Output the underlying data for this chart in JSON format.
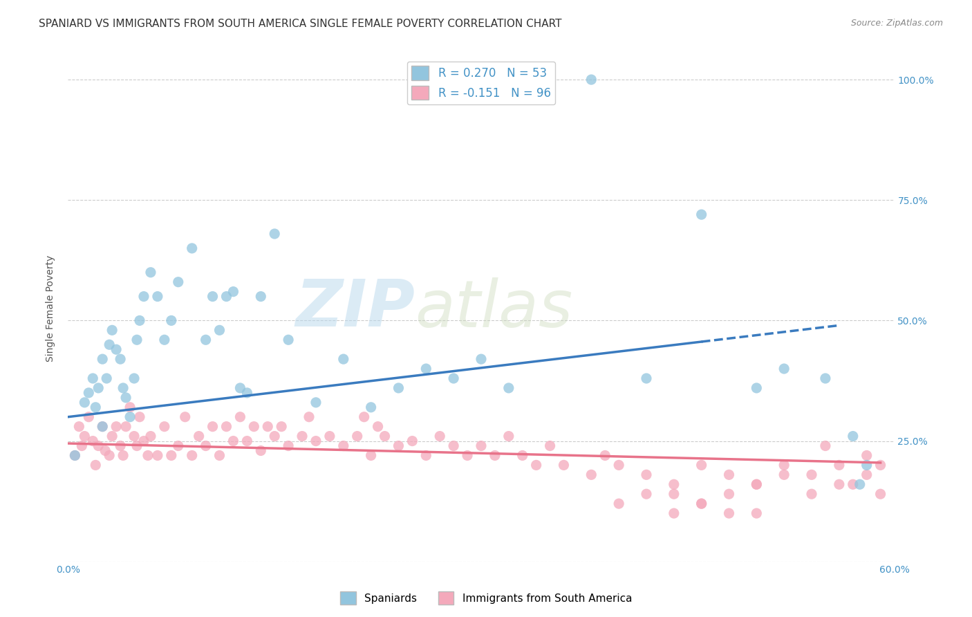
{
  "title": "SPANIARD VS IMMIGRANTS FROM SOUTH AMERICA SINGLE FEMALE POVERTY CORRELATION CHART",
  "source": "Source: ZipAtlas.com",
  "ylabel": "Single Female Poverty",
  "xlim": [
    0.0,
    0.6
  ],
  "ylim": [
    0.0,
    1.05
  ],
  "y_ticks": [
    0.0,
    0.25,
    0.5,
    0.75,
    1.0
  ],
  "y_tick_labels": [
    "",
    "25.0%",
    "50.0%",
    "75.0%",
    "100.0%"
  ],
  "legend_blue_label": "R = 0.270   N = 53",
  "legend_pink_label": "R = -0.151   N = 96",
  "legend_blue_series": "Spaniards",
  "legend_pink_series": "Immigrants from South America",
  "blue_color": "#92c5de",
  "pink_color": "#f4a9bb",
  "trend_blue_color": "#3a7bbf",
  "trend_pink_color": "#e8738a",
  "watermark_zip": "ZIP",
  "watermark_atlas": "atlas",
  "blue_R": 0.27,
  "pink_R": -0.151,
  "blue_trend_x0": 0.0,
  "blue_trend_y0": 0.3,
  "blue_trend_x1": 0.56,
  "blue_trend_y1": 0.49,
  "blue_trend_solid_end": 0.46,
  "pink_trend_x0": 0.0,
  "pink_trend_y0": 0.245,
  "pink_trend_x1": 0.59,
  "pink_trend_y1": 0.205,
  "blue_scatter_x": [
    0.005,
    0.012,
    0.015,
    0.018,
    0.02,
    0.022,
    0.025,
    0.025,
    0.028,
    0.03,
    0.032,
    0.035,
    0.038,
    0.04,
    0.042,
    0.045,
    0.048,
    0.05,
    0.052,
    0.055,
    0.06,
    0.065,
    0.07,
    0.075,
    0.08,
    0.09,
    0.1,
    0.105,
    0.11,
    0.115,
    0.12,
    0.125,
    0.13,
    0.14,
    0.15,
    0.16,
    0.18,
    0.2,
    0.22,
    0.24,
    0.26,
    0.28,
    0.3,
    0.32,
    0.38,
    0.42,
    0.46,
    0.5,
    0.52,
    0.55,
    0.57,
    0.575,
    0.58
  ],
  "blue_scatter_y": [
    0.22,
    0.33,
    0.35,
    0.38,
    0.32,
    0.36,
    0.28,
    0.42,
    0.38,
    0.45,
    0.48,
    0.44,
    0.42,
    0.36,
    0.34,
    0.3,
    0.38,
    0.46,
    0.5,
    0.55,
    0.6,
    0.55,
    0.46,
    0.5,
    0.58,
    0.65,
    0.46,
    0.55,
    0.48,
    0.55,
    0.56,
    0.36,
    0.35,
    0.55,
    0.68,
    0.46,
    0.33,
    0.42,
    0.32,
    0.36,
    0.4,
    0.38,
    0.42,
    0.36,
    1.0,
    0.38,
    0.72,
    0.36,
    0.4,
    0.38,
    0.26,
    0.16,
    0.2
  ],
  "pink_scatter_x": [
    0.005,
    0.008,
    0.01,
    0.012,
    0.015,
    0.018,
    0.02,
    0.022,
    0.025,
    0.027,
    0.03,
    0.032,
    0.035,
    0.038,
    0.04,
    0.042,
    0.045,
    0.048,
    0.05,
    0.052,
    0.055,
    0.058,
    0.06,
    0.065,
    0.07,
    0.075,
    0.08,
    0.085,
    0.09,
    0.095,
    0.1,
    0.105,
    0.11,
    0.115,
    0.12,
    0.125,
    0.13,
    0.135,
    0.14,
    0.145,
    0.15,
    0.155,
    0.16,
    0.17,
    0.175,
    0.18,
    0.19,
    0.2,
    0.21,
    0.215,
    0.22,
    0.225,
    0.23,
    0.24,
    0.25,
    0.26,
    0.27,
    0.28,
    0.29,
    0.3,
    0.31,
    0.32,
    0.33,
    0.34,
    0.35,
    0.36,
    0.38,
    0.39,
    0.4,
    0.42,
    0.44,
    0.46,
    0.48,
    0.5,
    0.52,
    0.54,
    0.55,
    0.56,
    0.57,
    0.58,
    0.59,
    0.44,
    0.46,
    0.48,
    0.5,
    0.52,
    0.54,
    0.56,
    0.58,
    0.59,
    0.4,
    0.42,
    0.44,
    0.46,
    0.48,
    0.5
  ],
  "pink_scatter_y": [
    0.22,
    0.28,
    0.24,
    0.26,
    0.3,
    0.25,
    0.2,
    0.24,
    0.28,
    0.23,
    0.22,
    0.26,
    0.28,
    0.24,
    0.22,
    0.28,
    0.32,
    0.26,
    0.24,
    0.3,
    0.25,
    0.22,
    0.26,
    0.22,
    0.28,
    0.22,
    0.24,
    0.3,
    0.22,
    0.26,
    0.24,
    0.28,
    0.22,
    0.28,
    0.25,
    0.3,
    0.25,
    0.28,
    0.23,
    0.28,
    0.26,
    0.28,
    0.24,
    0.26,
    0.3,
    0.25,
    0.26,
    0.24,
    0.26,
    0.3,
    0.22,
    0.28,
    0.26,
    0.24,
    0.25,
    0.22,
    0.26,
    0.24,
    0.22,
    0.24,
    0.22,
    0.26,
    0.22,
    0.2,
    0.24,
    0.2,
    0.18,
    0.22,
    0.2,
    0.18,
    0.16,
    0.2,
    0.18,
    0.16,
    0.2,
    0.18,
    0.24,
    0.2,
    0.16,
    0.18,
    0.2,
    0.14,
    0.12,
    0.14,
    0.16,
    0.18,
    0.14,
    0.16,
    0.22,
    0.14,
    0.12,
    0.14,
    0.1,
    0.12,
    0.1,
    0.1
  ],
  "bg_color": "#ffffff",
  "grid_color": "#cccccc",
  "title_fontsize": 11,
  "label_fontsize": 10,
  "tick_fontsize": 10
}
